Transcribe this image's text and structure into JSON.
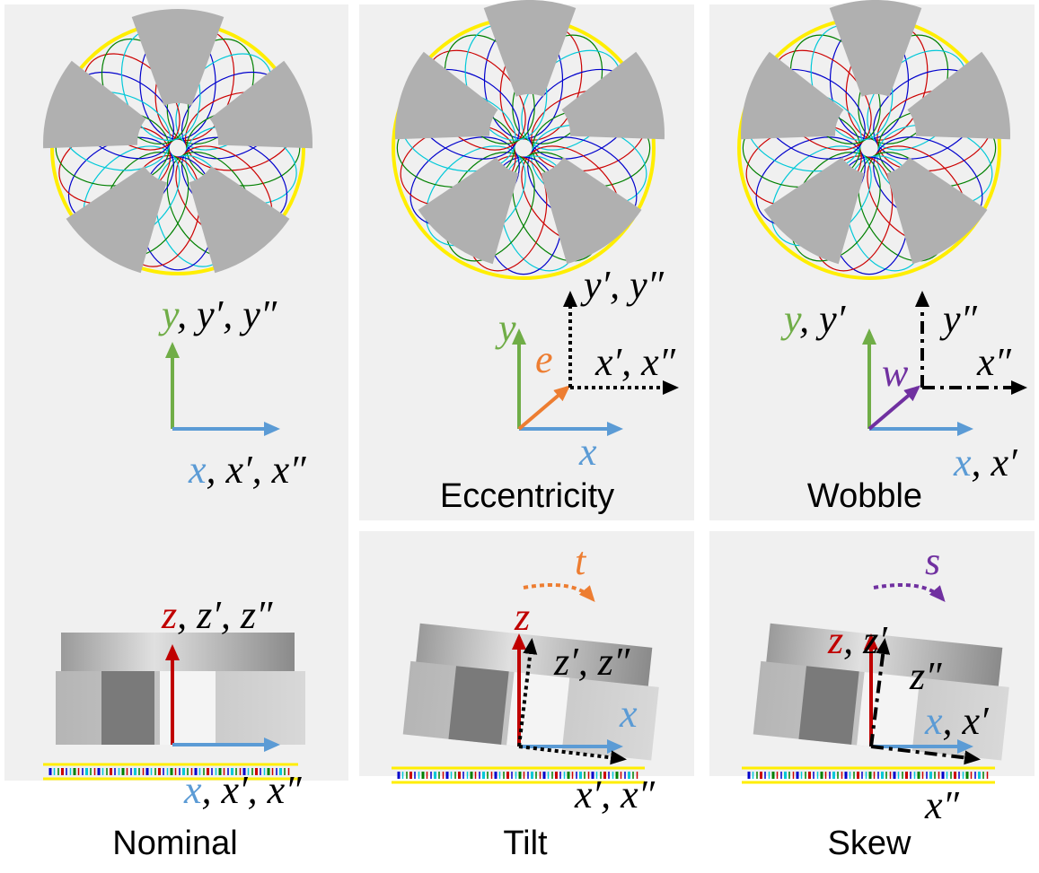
{
  "captions": {
    "nominal": "Nominal",
    "eccentricity": "Eccentricity",
    "wobble": "Wobble",
    "tilt": "Tilt",
    "skew": "Skew"
  },
  "labels": {
    "nominal_y": [
      "y",
      ", y′, y″"
    ],
    "nominal_x": [
      "x",
      ", x′, x″"
    ],
    "nominal_z": [
      "z",
      ", z′, z″"
    ],
    "nominal_x_side": [
      "x",
      ", x′, x″"
    ],
    "ecc_y2": "y′, y″",
    "ecc_y": "y",
    "ecc_e": "e⃗",
    "ecc_x2": "x′, x″",
    "ecc_x": "x",
    "wob_y": [
      "y",
      ", y′"
    ],
    "wob_y2": "y″",
    "wob_w": "w⃗",
    "wob_x2": "x″",
    "wob_x": [
      "x",
      ", x′"
    ],
    "tilt_t": "t⃗",
    "tilt_z": "z",
    "tilt_z2": "z′, z″",
    "tilt_x": "x",
    "tilt_x2": "x′, x″",
    "skew_s": "s⃗",
    "skew_z": [
      "z",
      ", z′"
    ],
    "skew_z2": "z″",
    "skew_x": [
      "x",
      ", x′"
    ],
    "skew_x2": "x″"
  }
}
